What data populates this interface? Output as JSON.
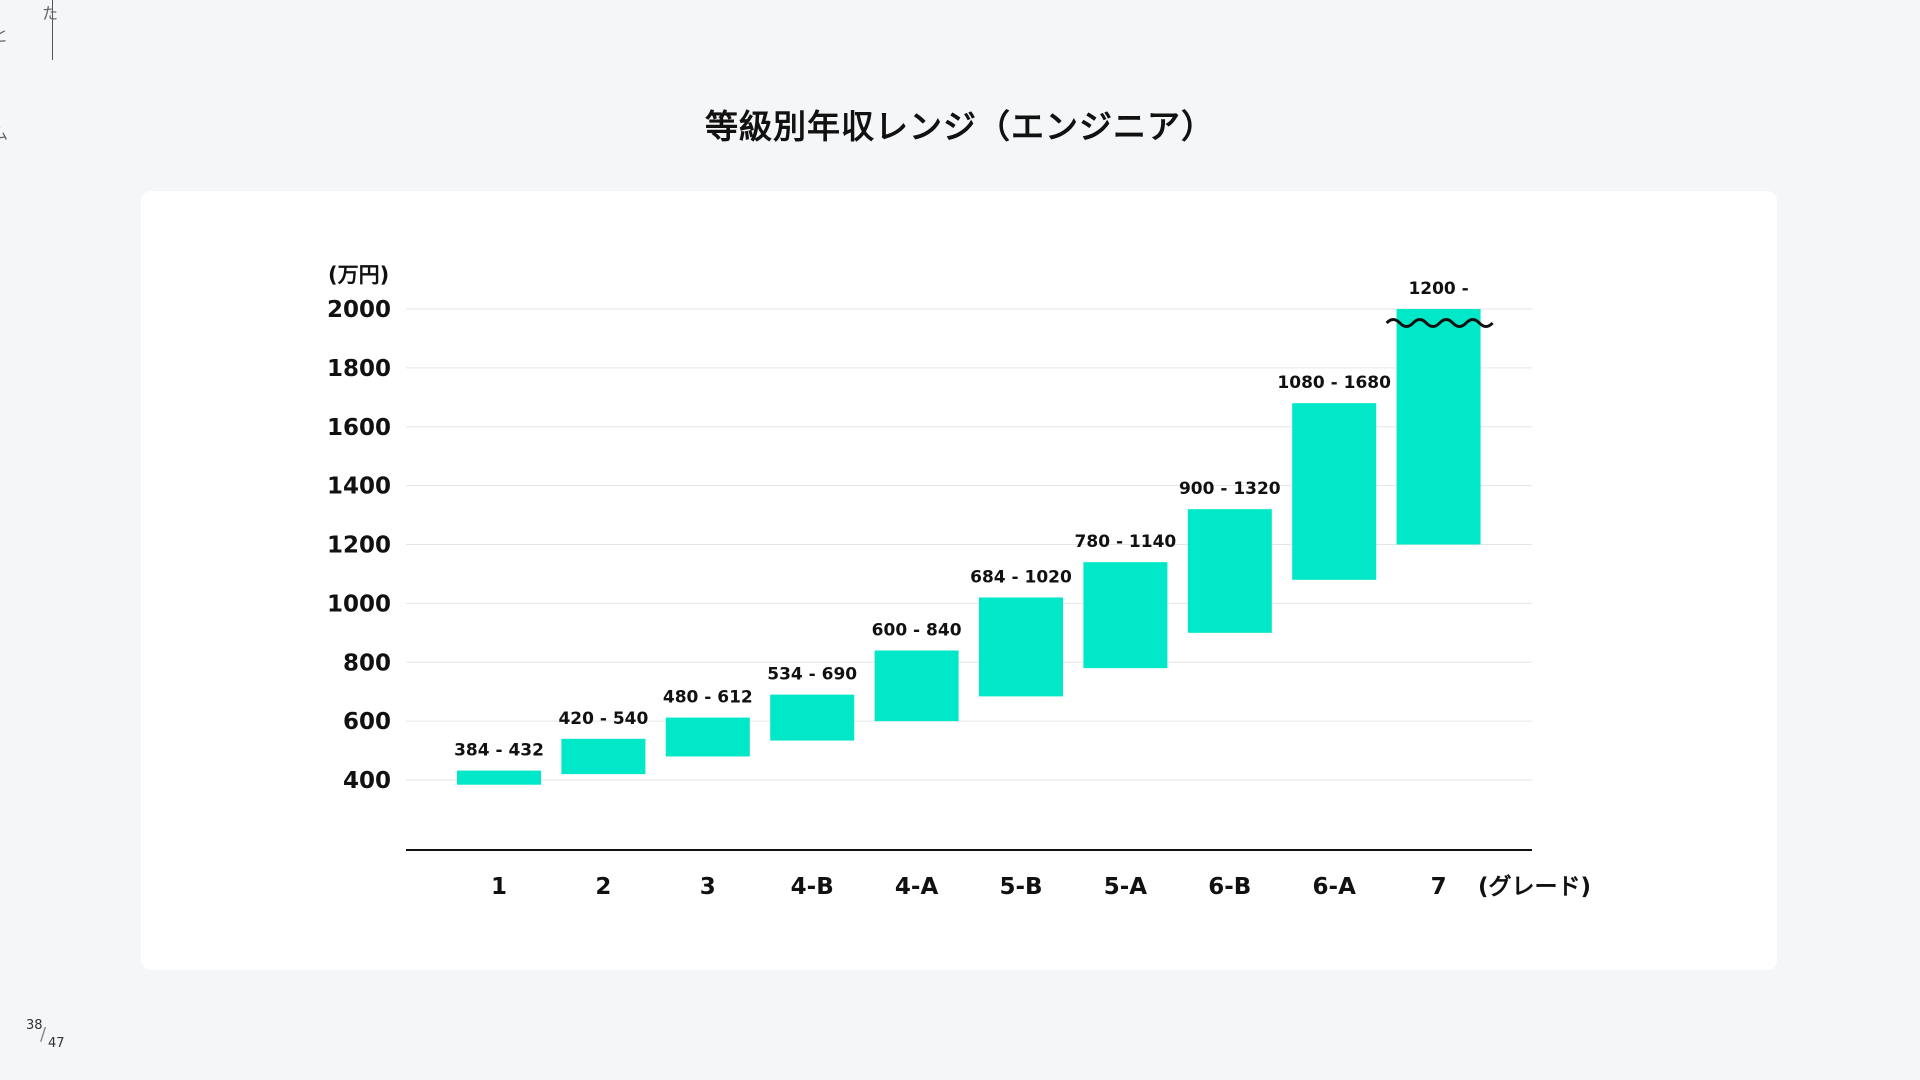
{
  "slide": {
    "title": "等級別年収レンジ（エンジニア）",
    "page_current": "38",
    "page_separator": "/",
    "page_total": "47",
    "side_glyphs": [
      "た",
      "と",
      "ム"
    ]
  },
  "colors": {
    "bar": "#00e8c8",
    "grid": "#e6e6e6",
    "axis": "#111111",
    "text": "#111111"
  },
  "chart_data": {
    "type": "bar",
    "subtype": "floating-range",
    "title": "等級別年収レンジ（エンジニア）",
    "ylabel": "(万円)",
    "xlabel": "(グレード)",
    "ylim": [
      160,
      2000
    ],
    "yticks": [
      "2000",
      "1800",
      "1600",
      "1400",
      "1200",
      "1000",
      "800",
      "600",
      "400"
    ],
    "ytick_values": [
      2000,
      1800,
      1600,
      1400,
      1200,
      1000,
      800,
      600,
      400
    ],
    "categories": [
      "1",
      "2",
      "3",
      "4-B",
      "4-A",
      "5-B",
      "5-A",
      "6-B",
      "6-A",
      "7"
    ],
    "ranges": [
      {
        "low": 384,
        "high": 432,
        "label": "384 - 432"
      },
      {
        "low": 420,
        "high": 540,
        "label": "420 - 540"
      },
      {
        "low": 480,
        "high": 612,
        "label": "480 - 612"
      },
      {
        "low": 534,
        "high": 690,
        "label": "534 - 690"
      },
      {
        "low": 600,
        "high": 840,
        "label": "600 - 840"
      },
      {
        "low": 684,
        "high": 1020,
        "label": "684 - 1020"
      },
      {
        "low": 780,
        "high": 1140,
        "label": "780 - 1140"
      },
      {
        "low": 900,
        "high": 1320,
        "label": "900 - 1320"
      },
      {
        "low": 1080,
        "high": 1680,
        "label": "1080 - 1680"
      },
      {
        "low": 1200,
        "high": 2000,
        "label": "1200 -",
        "open_ended": true
      }
    ],
    "grid": true,
    "legend": "none"
  }
}
